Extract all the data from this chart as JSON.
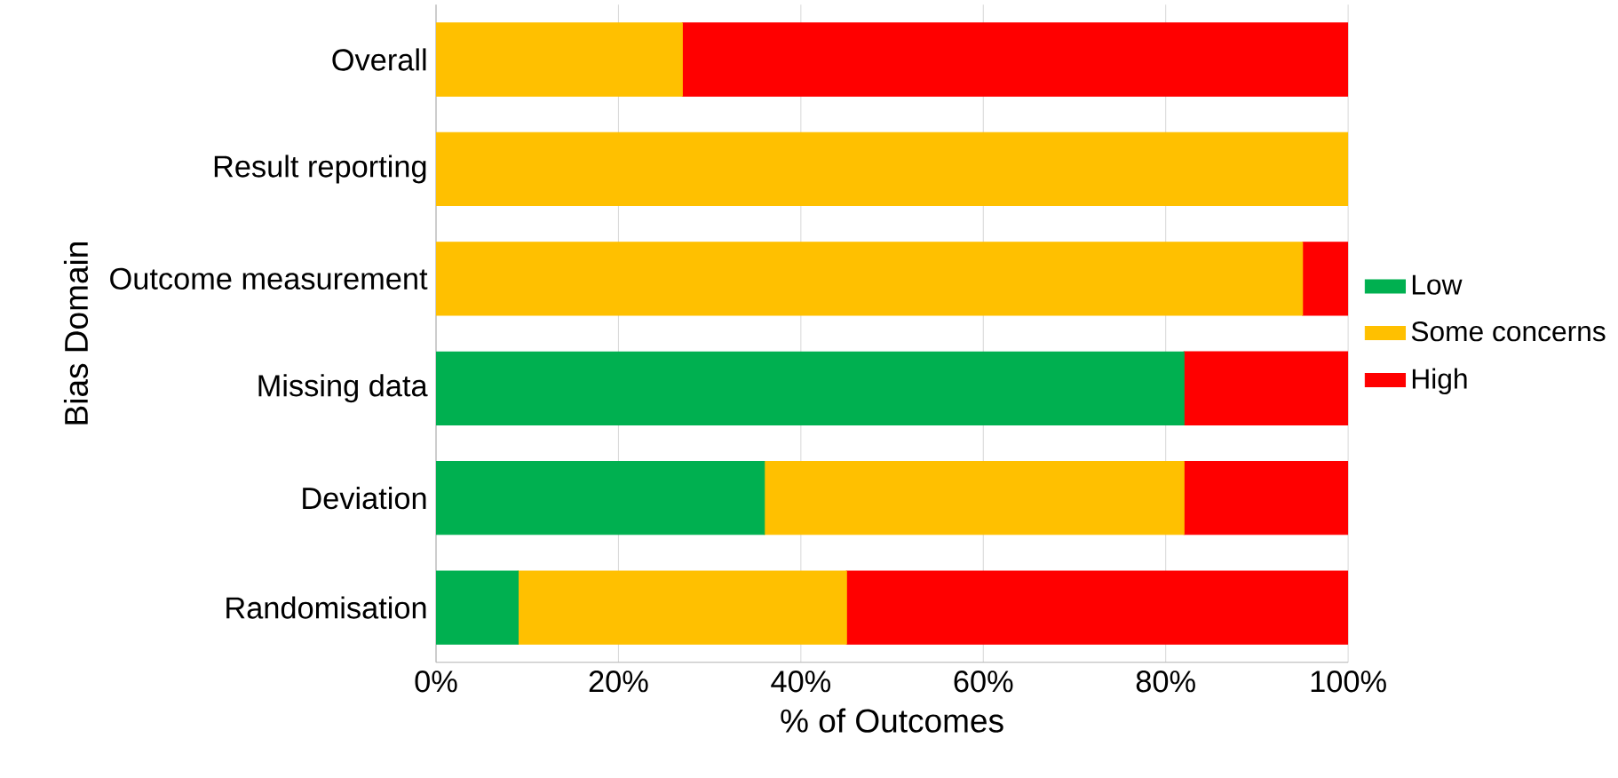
{
  "chart_data": {
    "type": "bar",
    "orientation": "horizontal",
    "stacked": true,
    "xlabel": "% of Outcomes",
    "ylabel": "Bias Domain",
    "categories": [
      "Overall",
      "Result reporting",
      "Outcome measurement",
      "Missing data",
      "Deviation",
      "Randomisation"
    ],
    "series": [
      {
        "name": "Low",
        "color": "#00b050",
        "values": [
          0,
          0,
          0,
          82,
          36,
          9
        ]
      },
      {
        "name": "Some concerns",
        "color": "#ffc000",
        "values": [
          27,
          100,
          95,
          0,
          46,
          36
        ]
      },
      {
        "name": "High",
        "color": "#ff0000",
        "values": [
          73,
          0,
          5,
          18,
          18,
          55
        ]
      }
    ],
    "xlim": [
      0,
      100
    ],
    "xticks": [
      {
        "value": 0,
        "label": "0%"
      },
      {
        "value": 20,
        "label": "20%"
      },
      {
        "value": 40,
        "label": "40%"
      },
      {
        "value": 60,
        "label": "60%"
      },
      {
        "value": 80,
        "label": "80%"
      },
      {
        "value": 100,
        "label": "100%"
      }
    ],
    "grid": "x",
    "legend": "right"
  }
}
